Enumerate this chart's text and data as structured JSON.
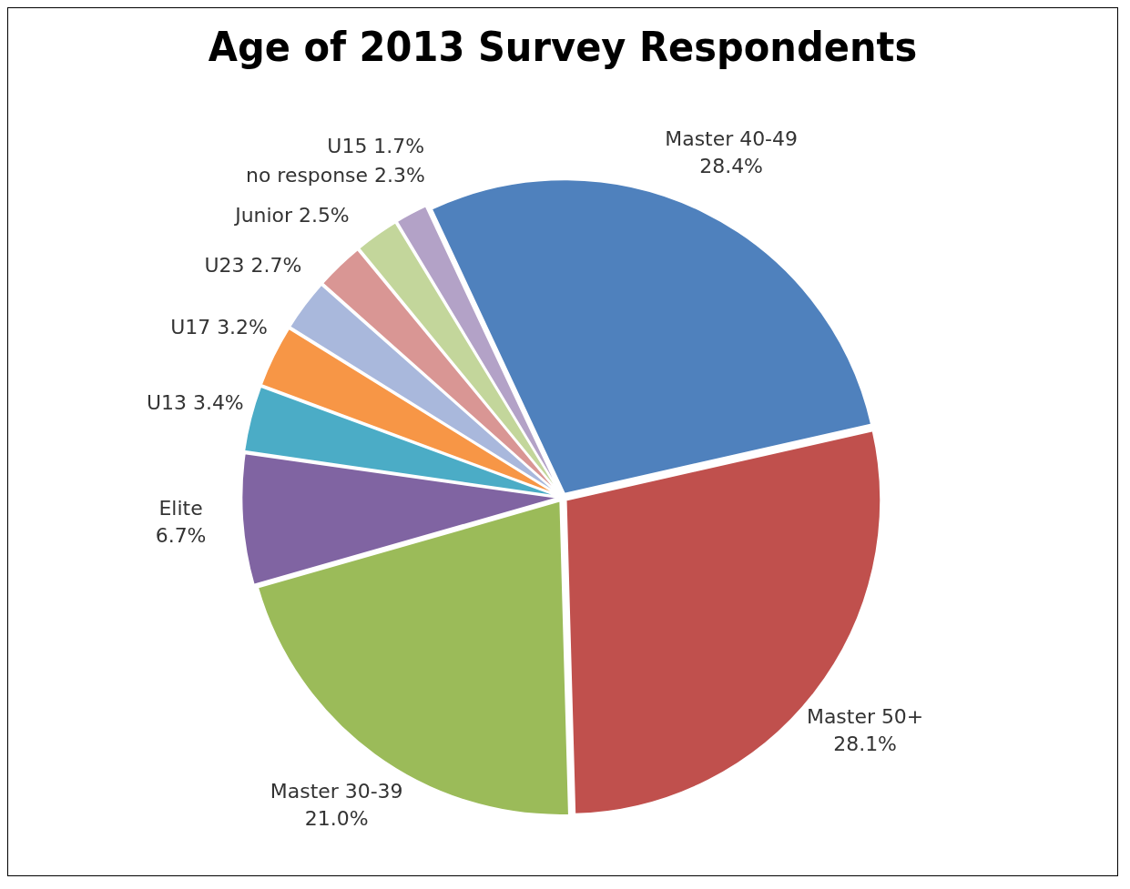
{
  "chart_data": {
    "type": "pie",
    "title": "Age of 2013 Survey Respondents",
    "categories": [
      "Master 40-49",
      "Master 50+",
      "Master 30-39",
      "Elite",
      "U13",
      "U17",
      "U23",
      "Junior",
      "no response",
      "U15"
    ],
    "values": [
      28.4,
      28.1,
      21.0,
      6.7,
      3.4,
      3.2,
      2.7,
      2.5,
      2.3,
      1.7
    ],
    "value_labels": [
      "28.4%",
      "28.1%",
      "21.0%",
      "6.7%",
      "3.4%",
      "3.2%",
      "2.7%",
      "2.5%",
      "2.3%",
      "1.7%"
    ],
    "colors": [
      "#4f81bd",
      "#c0504d",
      "#9bbb59",
      "#8064a2",
      "#4bacc6",
      "#f79646",
      "#a9b8dc",
      "#d99694",
      "#c3d69b",
      "#b3a2c7"
    ],
    "legend": false
  }
}
